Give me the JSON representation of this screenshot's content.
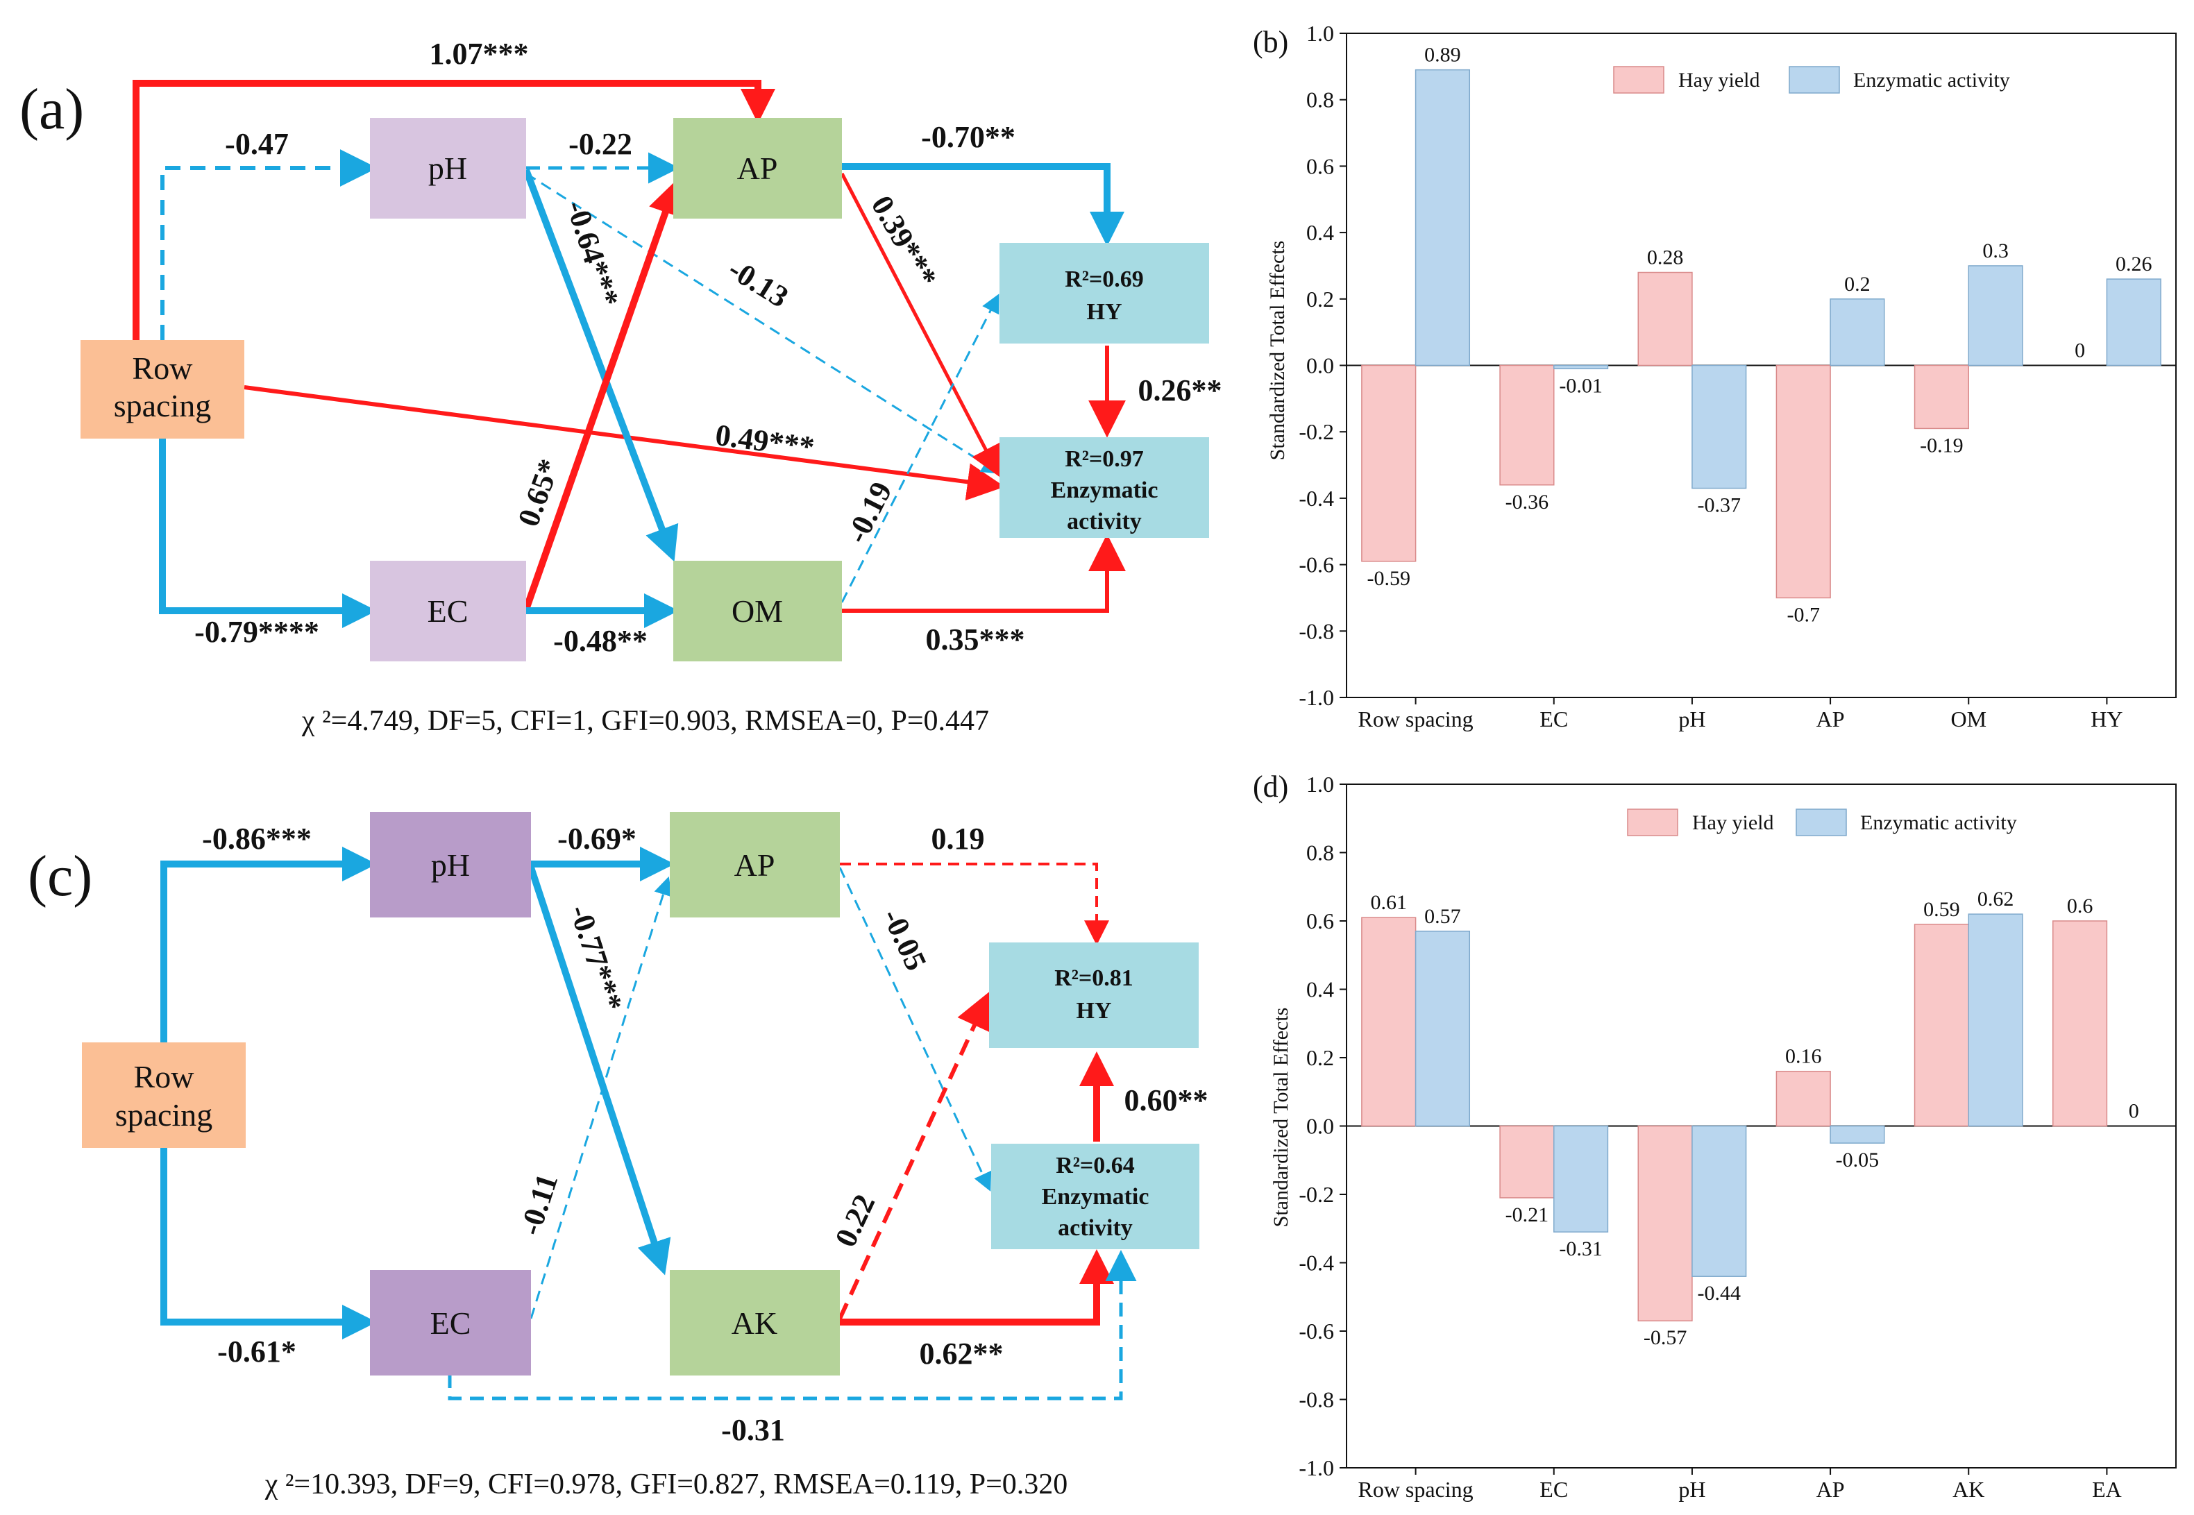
{
  "panel_a": {
    "label": "(a)",
    "nodes": {
      "row_spacing": [
        "Row",
        "spacing"
      ],
      "ph": "pH",
      "ec": "EC",
      "ap": "AP",
      "om": "OM",
      "hy": [
        "R²=0.69",
        "HY"
      ],
      "ea": [
        "R²=0.97",
        "Enzymatic",
        "activity"
      ]
    },
    "coefs": {
      "row_ap": "1.07***",
      "row_ph": "-0.47",
      "row_ea": "0.49***",
      "row_ec": "-0.79****",
      "ph_ap": "-0.22",
      "ph_om": "-0.64***",
      "ph_ea": "-0.13",
      "ap_hy": "-0.70**",
      "ap_ea": "0.39***",
      "ec_ap": "0.65*",
      "ec_om": "-0.48**",
      "om_hy": "-0.19",
      "om_ea": "0.35***",
      "hy_ea": "0.26**"
    },
    "fit": "χ ²=4.749, DF=5, CFI=1, GFI=0.903, RMSEA=0, P=0.447"
  },
  "panel_c": {
    "label": "(c)",
    "nodes": {
      "row_spacing": [
        "Row",
        "spacing"
      ],
      "ph": "pH",
      "ec": "EC",
      "ap": "AP",
      "ak": "AK",
      "hy": [
        "R²=0.81",
        "HY"
      ],
      "ea": [
        "R²=0.64",
        "Enzymatic",
        "activity"
      ]
    },
    "coefs": {
      "row_ph": "-0.86***",
      "row_ec": "-0.61*",
      "ph_ap": "-0.69*",
      "ph_ak": "-0.77***",
      "ap_hy": "0.19",
      "ap_ea": "-0.05",
      "ec_ap": "-0.11",
      "ec_ea": "-0.31",
      "ak_hy": "0.22",
      "ak_ea": "0.62**",
      "ea_hy": "0.60**"
    },
    "fit": "χ ²=10.393, DF=9, CFI=0.978, GFI=0.827, RMSEA=0.119, P=0.320"
  },
  "colors": {
    "positive": "#ff1a1a",
    "negative": "#1aa7e0",
    "row_box": "#fbbf95",
    "ph_ec_box_a": "#d8c5e0",
    "ph_ec_box_c": "#b89cc9",
    "mid_box": "#b5d39a",
    "resp_box": "#a7dbe3",
    "hay_bar": "#f9c8c8",
    "enz_bar": "#b9d6ee"
  },
  "chart_data": [
    {
      "label": "(b)",
      "type": "bar",
      "ylabel": "Standardized Total Effects",
      "ylim": [
        -1.0,
        1.0
      ],
      "ticks": [
        "-1.0",
        "-0.8",
        "-0.6",
        "-0.4",
        "-0.2",
        "0.0",
        "0.2",
        "0.4",
        "0.6",
        "0.8",
        "1.0"
      ],
      "categories": [
        "Row spacing",
        "EC",
        "pH",
        "AP",
        "OM",
        "HY"
      ],
      "legend_position": "top-right",
      "series": [
        {
          "name": "Hay yield",
          "values": [
            -0.59,
            -0.36,
            0.28,
            -0.7,
            -0.19,
            0
          ],
          "labels": [
            "-0.59",
            "-0.36",
            "0.28",
            "-0.7",
            "-0.19",
            "0"
          ]
        },
        {
          "name": "Enzymatic activity",
          "values": [
            0.89,
            -0.01,
            -0.37,
            0.2,
            0.3,
            0.26
          ],
          "labels": [
            "0.89",
            "-0.01",
            "-0.37",
            "0.2",
            "0.3",
            "0.26"
          ]
        }
      ]
    },
    {
      "label": "(d)",
      "type": "bar",
      "ylabel": "Standardized Total Effects",
      "ylim": [
        -1.0,
        1.0
      ],
      "ticks": [
        "-1.0",
        "-0.8",
        "-0.6",
        "-0.4",
        "-0.2",
        "0.0",
        "0.2",
        "0.4",
        "0.6",
        "0.8",
        "1.0"
      ],
      "categories": [
        "Row spacing",
        "EC",
        "pH",
        "AP",
        "AK",
        "EA"
      ],
      "legend_position": "top-right",
      "series": [
        {
          "name": "Hay yield",
          "values": [
            0.61,
            -0.21,
            -0.57,
            0.16,
            0.59,
            0.6
          ],
          "labels": [
            "0.61",
            "-0.21",
            "-0.57",
            "0.16",
            "0.59",
            "0.6"
          ]
        },
        {
          "name": "Enzymatic activity",
          "values": [
            0.57,
            -0.31,
            -0.44,
            -0.05,
            0.62,
            0
          ],
          "labels": [
            "0.57",
            "-0.31",
            "-0.44",
            "-0.05",
            "0.62",
            "0"
          ]
        }
      ]
    }
  ]
}
